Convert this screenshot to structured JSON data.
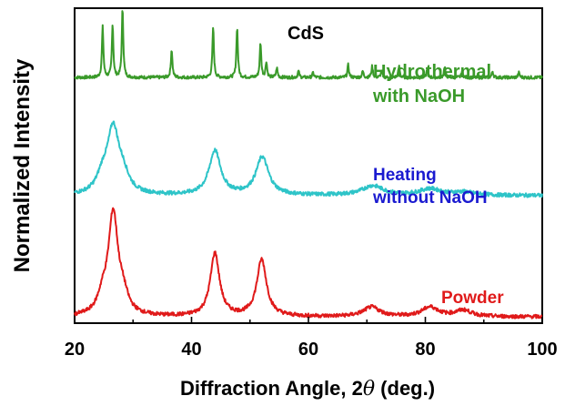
{
  "chart_data": {
    "type": "line",
    "title": "CdS",
    "xlabel_prefix": "Diffraction Angle, 2",
    "xlabel_symbol": "θ",
    "xlabel_suffix": " (deg.)",
    "ylabel": "Normalized Intensity",
    "xlim": [
      20,
      100
    ],
    "xticks": [
      20,
      40,
      60,
      80,
      100
    ],
    "grid": false,
    "y_tick_labels": false,
    "series": [
      {
        "name_lines": [
          "Hydrothermal",
          "with NaOH"
        ],
        "color": "#3a9a2a",
        "baseline": 0.78,
        "noise": 0.005,
        "peaks": [
          {
            "x": 24.8,
            "h": 0.16,
            "w": 0.15
          },
          {
            "x": 26.5,
            "h": 0.17,
            "w": 0.15
          },
          {
            "x": 28.2,
            "h": 0.22,
            "w": 0.15
          },
          {
            "x": 36.6,
            "h": 0.09,
            "w": 0.15
          },
          {
            "x": 43.7,
            "h": 0.16,
            "w": 0.15
          },
          {
            "x": 47.8,
            "h": 0.16,
            "w": 0.15
          },
          {
            "x": 51.8,
            "h": 0.11,
            "w": 0.15
          },
          {
            "x": 52.8,
            "h": 0.05,
            "w": 0.15
          },
          {
            "x": 54.6,
            "h": 0.03,
            "w": 0.15
          },
          {
            "x": 58.3,
            "h": 0.02,
            "w": 0.15
          },
          {
            "x": 60.8,
            "h": 0.015,
            "w": 0.15
          },
          {
            "x": 66.8,
            "h": 0.04,
            "w": 0.15
          },
          {
            "x": 69.3,
            "h": 0.02,
            "w": 0.15
          },
          {
            "x": 70.9,
            "h": 0.035,
            "w": 0.15
          },
          {
            "x": 72.5,
            "h": 0.02,
            "w": 0.15
          },
          {
            "x": 75.5,
            "h": 0.035,
            "w": 0.15
          },
          {
            "x": 80.3,
            "h": 0.025,
            "w": 0.15
          },
          {
            "x": 83.3,
            "h": 0.035,
            "w": 0.15
          },
          {
            "x": 86.3,
            "h": 0.02,
            "w": 0.15
          },
          {
            "x": 91.5,
            "h": 0.02,
            "w": 0.15
          },
          {
            "x": 96.0,
            "h": 0.015,
            "w": 0.15
          }
        ]
      },
      {
        "name_lines": [
          "Heating",
          "without NaOH"
        ],
        "color": "#2ec4c8",
        "baseline": 0.405,
        "noise": 0.006,
        "peaks": [
          {
            "x": 26.6,
            "h": 0.2,
            "w": 1.2
          },
          {
            "x": 24.8,
            "h": 0.05,
            "w": 1.2
          },
          {
            "x": 28.3,
            "h": 0.05,
            "w": 1.2
          },
          {
            "x": 44.0,
            "h": 0.14,
            "w": 1.2
          },
          {
            "x": 52.1,
            "h": 0.12,
            "w": 1.3
          },
          {
            "x": 71.0,
            "h": 0.03,
            "w": 2.2
          },
          {
            "x": 80.8,
            "h": 0.02,
            "w": 2.2
          },
          {
            "x": 86.5,
            "h": 0.01,
            "w": 2.2
          }
        ]
      },
      {
        "name_lines": [
          "Powder"
        ],
        "color": "#e01a1a",
        "baseline": 0.02,
        "noise": 0.006,
        "peaks": [
          {
            "x": 26.6,
            "h": 0.32,
            "w": 1.0
          },
          {
            "x": 24.8,
            "h": 0.05,
            "w": 1.0
          },
          {
            "x": 28.3,
            "h": 0.05,
            "w": 1.0
          },
          {
            "x": 44.0,
            "h": 0.2,
            "w": 0.95
          },
          {
            "x": 52.0,
            "h": 0.18,
            "w": 1.0
          },
          {
            "x": 70.8,
            "h": 0.03,
            "w": 1.7
          },
          {
            "x": 80.8,
            "h": 0.03,
            "w": 1.7
          },
          {
            "x": 86.5,
            "h": 0.02,
            "w": 1.7
          }
        ]
      }
    ]
  }
}
